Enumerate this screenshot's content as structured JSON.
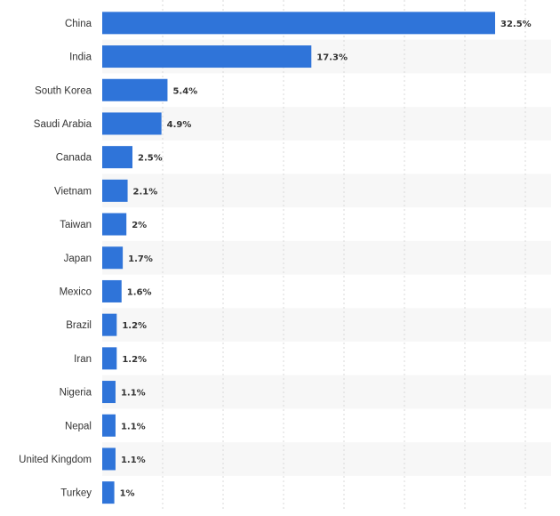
{
  "chart_data": {
    "type": "bar",
    "orientation": "horizontal",
    "categories": [
      "China",
      "India",
      "South Korea",
      "Saudi Arabia",
      "Canada",
      "Vietnam",
      "Taiwan",
      "Japan",
      "Mexico",
      "Brazil",
      "Iran",
      "Nigeria",
      "Nepal",
      "United Kingdom",
      "Turkey"
    ],
    "values": [
      32.5,
      17.3,
      5.4,
      4.9,
      2.5,
      2.1,
      2,
      1.7,
      1.6,
      1.2,
      1.2,
      1.1,
      1.1,
      1.1,
      1
    ],
    "value_labels": [
      "32.5%",
      "17.3%",
      "5.4%",
      "4.9%",
      "2.5%",
      "2.1%",
      "2%",
      "1.7%",
      "1.6%",
      "1.2%",
      "1.2%",
      "1.1%",
      "1.1%",
      "1.1%",
      "1%"
    ],
    "title": "",
    "xlabel": "",
    "ylabel": "",
    "xlim": [
      0,
      35
    ],
    "grid": true,
    "legend": "none",
    "colors": {
      "bar": "#2f74d9",
      "band": "#f7f7f7",
      "grid": "#d9d9d9",
      "text": "#333333"
    }
  }
}
